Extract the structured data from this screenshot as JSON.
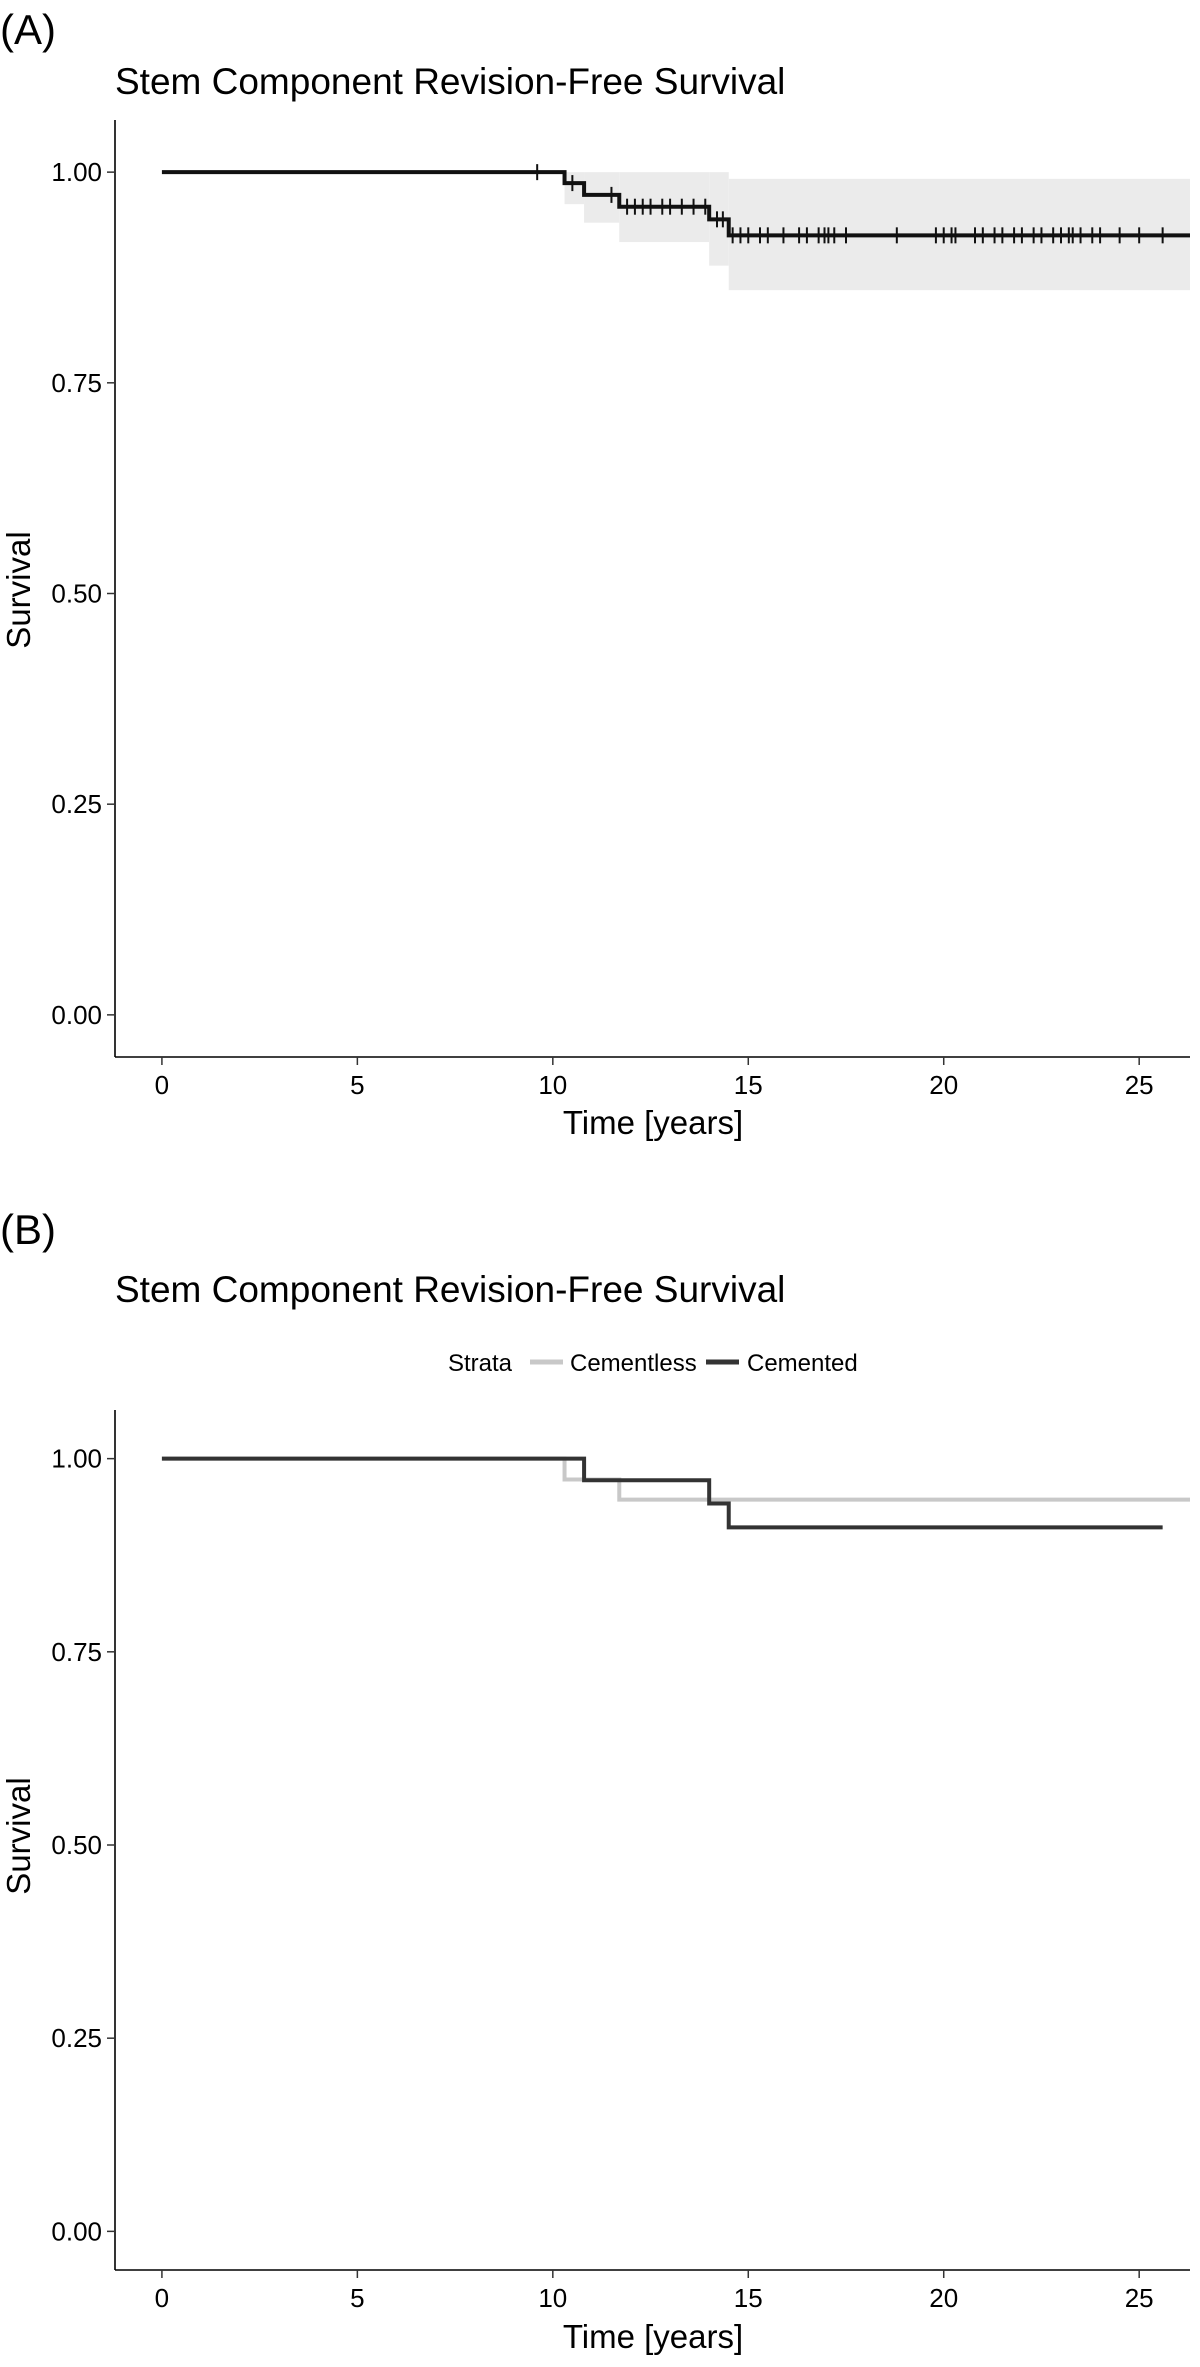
{
  "chart_data": [
    {
      "type": "line",
      "panel_label": "(A)",
      "title": "Stem Component Revision-Free Survival",
      "xlabel": "Time [years]",
      "ylabel": "Survival",
      "xlim": [
        -1.2,
        26.3
      ],
      "ylim": [
        -0.05,
        1.05
      ],
      "x_ticks": [
        0,
        5,
        10,
        15,
        20,
        25
      ],
      "y_ticks": [
        0.0,
        0.25,
        0.5,
        0.75,
        1.0
      ],
      "x_tick_labels": [
        "0",
        "5",
        "10",
        "15",
        "20",
        "25"
      ],
      "y_tick_labels": [
        "0.00",
        "0.25",
        "0.50",
        "0.75",
        "1.00"
      ],
      "grid": false,
      "legend": null,
      "series": [
        {
          "color": "#111111",
          "steps": [
            [
              0,
              1.0
            ],
            [
              10.3,
              0.987
            ],
            [
              10.8,
              0.973
            ],
            [
              11.7,
              0.959
            ],
            [
              14.0,
              0.944
            ],
            [
              14.5,
              0.925
            ],
            [
              26.3,
              0.925
            ]
          ],
          "ci_band": [
            [
              0,
              1.0,
              1.0
            ],
            [
              10.3,
              0.962,
              1.0
            ],
            [
              10.8,
              0.94,
              1.0
            ],
            [
              11.7,
              0.917,
              1.0
            ],
            [
              14.0,
              0.889,
              1.0
            ],
            [
              14.5,
              0.86,
              0.992
            ],
            [
              26.3,
              0.86,
              0.992
            ]
          ],
          "censor_times": [
            9.6,
            10.5,
            11.5,
            11.9,
            12.1,
            12.3,
            12.5,
            12.8,
            13.0,
            13.3,
            13.6,
            13.9,
            14.2,
            14.35,
            14.6,
            14.8,
            15.0,
            15.3,
            15.5,
            15.9,
            16.3,
            16.5,
            16.8,
            16.95,
            17.05,
            17.2,
            17.5,
            18.8,
            19.8,
            20.0,
            20.2,
            20.3,
            20.8,
            21.0,
            21.3,
            21.5,
            21.8,
            22.0,
            22.3,
            22.5,
            22.8,
            23.0,
            23.2,
            23.3,
            23.5,
            23.8,
            24.0,
            24.5,
            25.0,
            25.6
          ]
        }
      ]
    },
    {
      "type": "line",
      "panel_label": "(B)",
      "title": "Stem Component Revision-Free Survival",
      "xlabel": "Time [years]",
      "ylabel": "Survival",
      "xlim": [
        -1.2,
        26.3
      ],
      "ylim": [
        -0.05,
        1.05
      ],
      "x_ticks": [
        0,
        5,
        10,
        15,
        20,
        25
      ],
      "y_ticks": [
        0.0,
        0.25,
        0.5,
        0.75,
        1.0
      ],
      "x_tick_labels": [
        "0",
        "5",
        "10",
        "15",
        "20",
        "25"
      ],
      "y_tick_labels": [
        "0.00",
        "0.25",
        "0.50",
        "0.75",
        "1.00"
      ],
      "grid": false,
      "legend": {
        "placement": "top",
        "title": "Strata"
      },
      "series": [
        {
          "name": "Cementless",
          "color": "#c8c8c8",
          "steps": [
            [
              0,
              1.0
            ],
            [
              10.3,
              0.973
            ],
            [
              11.7,
              0.947
            ],
            [
              26.3,
              0.947
            ]
          ]
        },
        {
          "name": "Cemented",
          "color": "#333333",
          "steps": [
            [
              0,
              1.0
            ],
            [
              10.8,
              0.972
            ],
            [
              14.0,
              0.942
            ],
            [
              14.5,
              0.911
            ],
            [
              25.6,
              0.911
            ]
          ]
        }
      ]
    }
  ]
}
